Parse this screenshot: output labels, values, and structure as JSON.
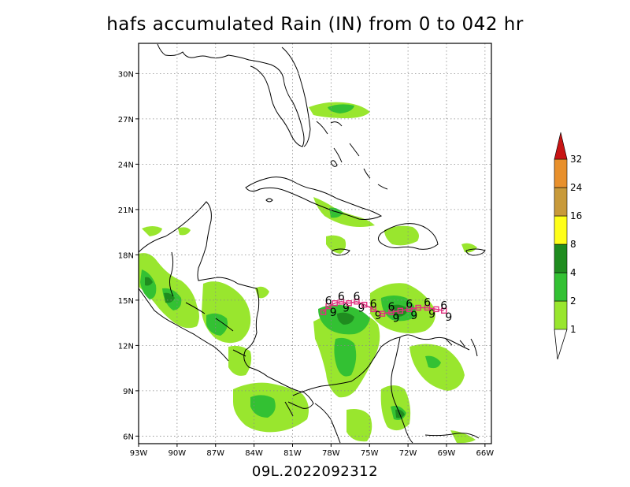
{
  "title": "hafs accumulated Rain (IN) from 0 to 042 hr",
  "subtitle": "09L.2022092312",
  "map": {
    "lat_ticks": [
      "30N",
      "27N",
      "24N",
      "21N",
      "18N",
      "15N",
      "12N",
      "9N",
      "6N"
    ],
    "lon_ticks": [
      "93W",
      "90W",
      "87W",
      "84W",
      "81W",
      "78W",
      "75W",
      "72W",
      "69W",
      "66W"
    ],
    "grid": "dotted",
    "extent": {
      "lon": [
        -93,
        -65.5
      ],
      "lat": [
        5.5,
        32
      ]
    }
  },
  "legend": {
    "levels": [
      "1",
      "2",
      "4",
      "8",
      "16",
      "24",
      "32"
    ],
    "colors": [
      "#99e62e",
      "#33c133",
      "#1f8c1f",
      "#ffff1a",
      "#c89a3a",
      "#e8902c",
      "#c81414"
    ]
  },
  "track": {
    "marker_color": "#e0307f",
    "label": "6",
    "points_lon": [
      -78.6,
      -78.2,
      -77.7,
      -77.2,
      -76.6,
      -76.0,
      -75.4,
      -74.7,
      -74.0,
      -73.3,
      -72.6,
      -71.9,
      -71.2,
      -70.5,
      -69.8,
      -69.2
    ],
    "points_lat": [
      14.2,
      14.6,
      14.8,
      14.9,
      14.8,
      14.9,
      14.7,
      14.4,
      14.1,
      14.2,
      14.3,
      14.4,
      14.5,
      14.5,
      14.4,
      14.3
    ]
  }
}
